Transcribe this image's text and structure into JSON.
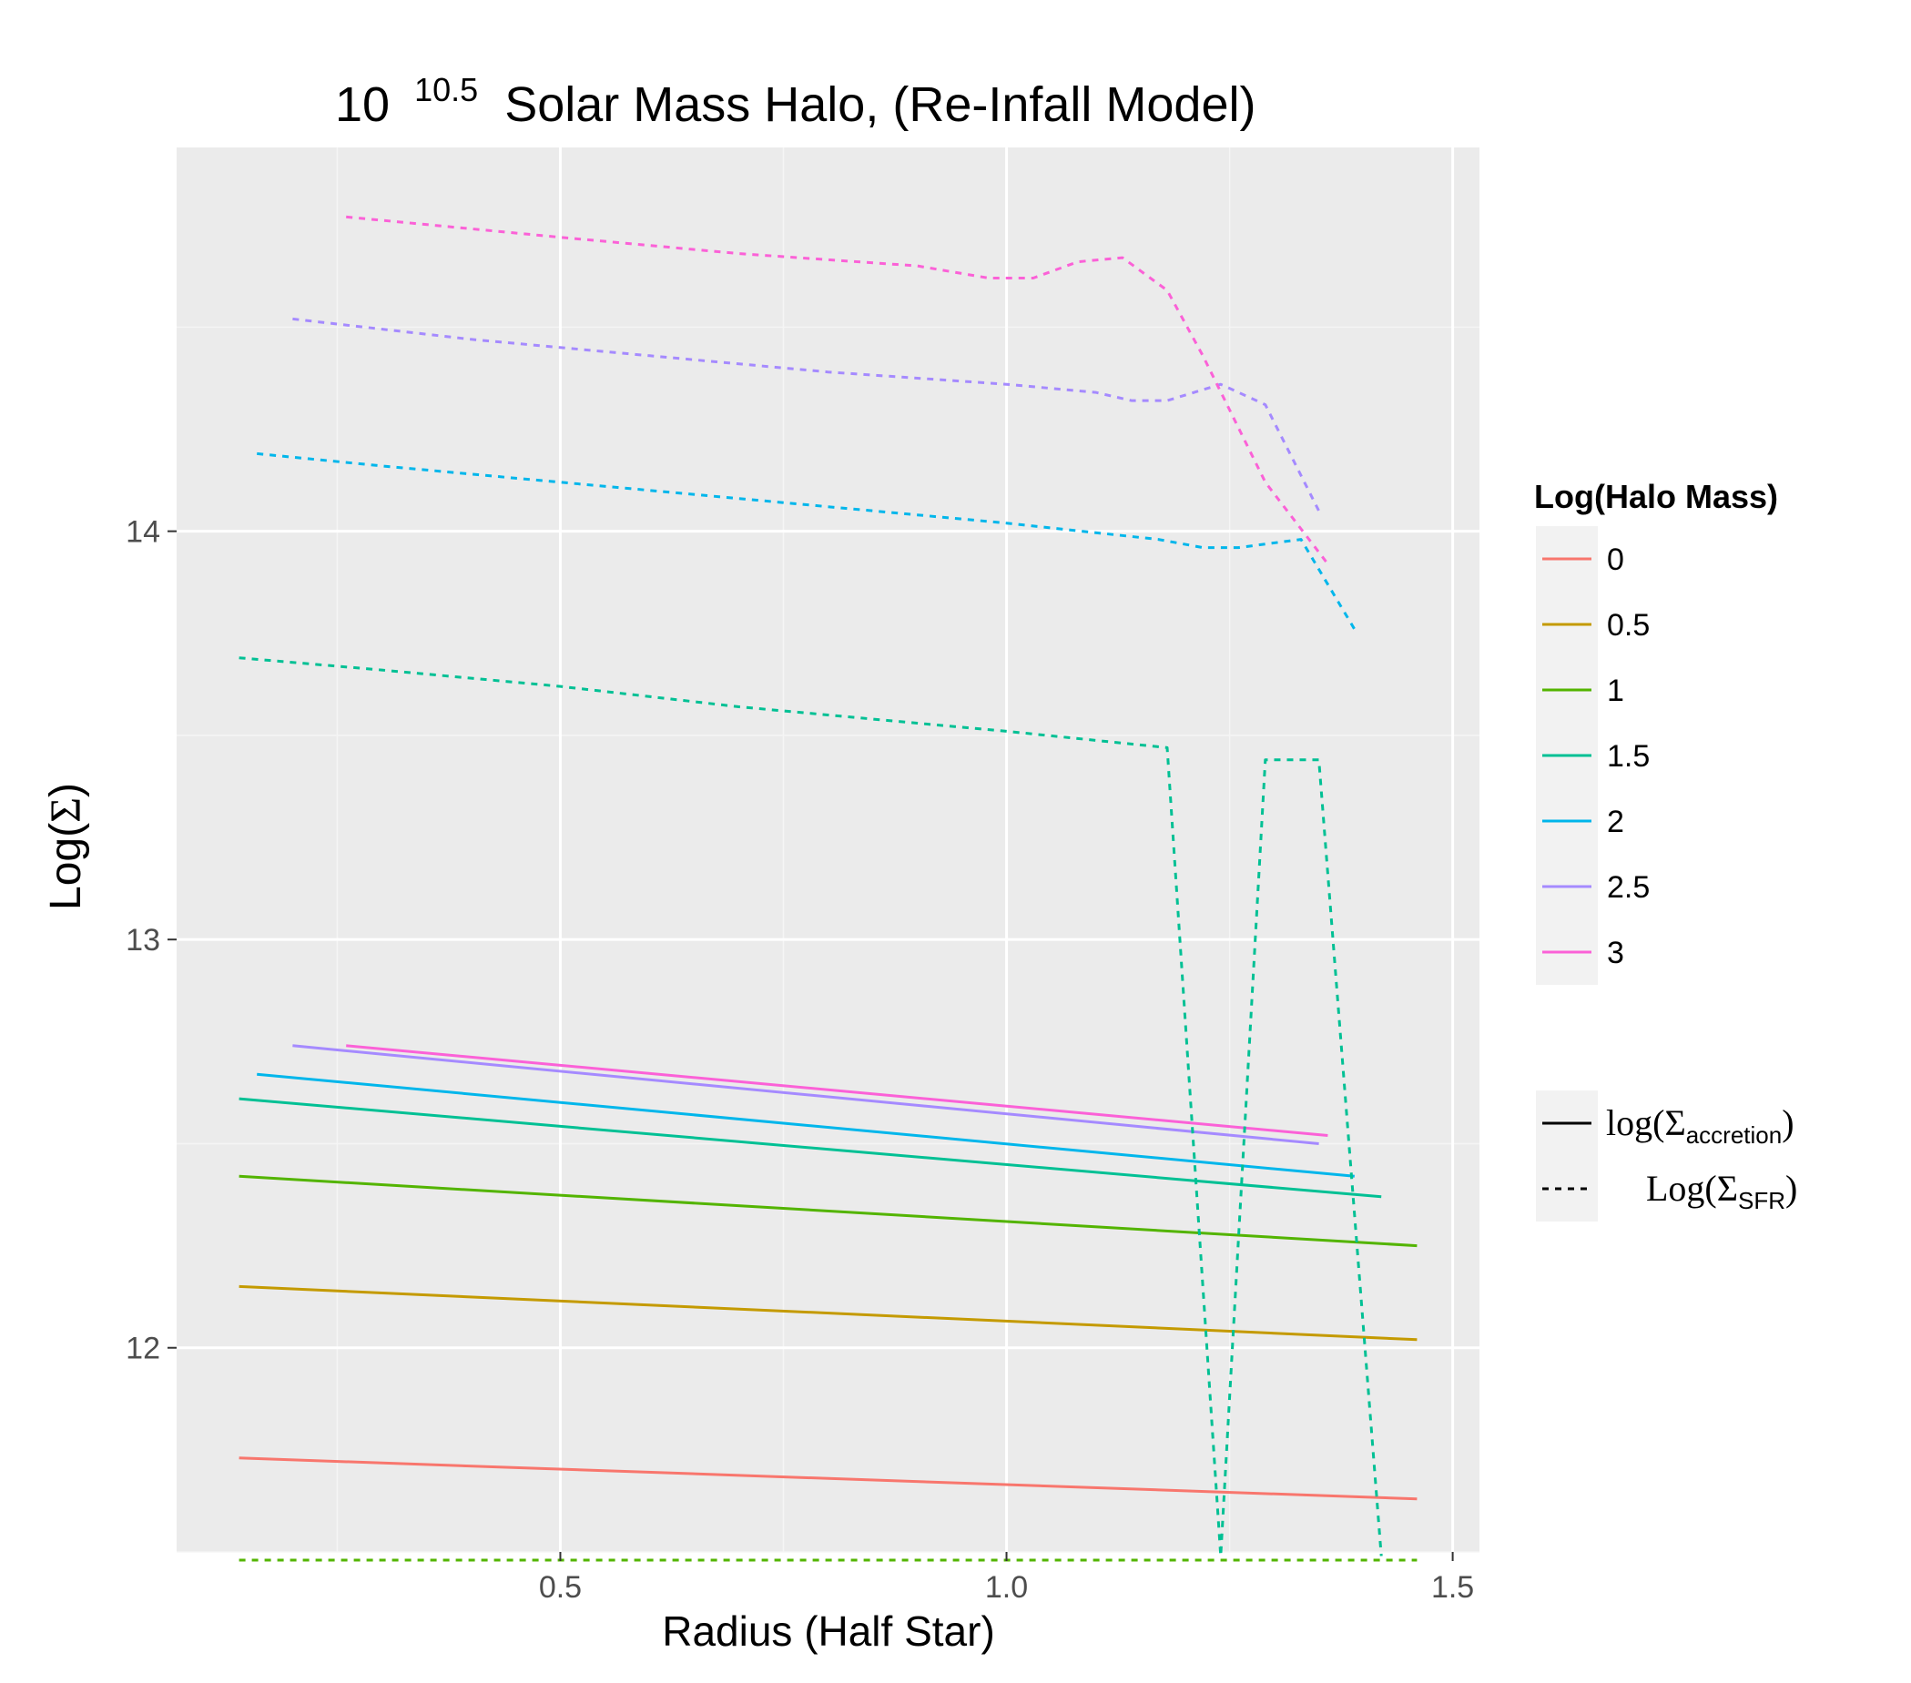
{
  "chart_data": {
    "type": "line",
    "title": {
      "base": "10",
      "exponent": "10.5",
      "text": "Solar Mass Halo, (Re-Infall Model)"
    },
    "xlabel": "Radius (Half Star)",
    "ylabel": {
      "prefix": "Log(",
      "symbol": "Σ",
      "suffix": ")"
    },
    "xlim": [
      0.07,
      1.53
    ],
    "ylim": [
      11.5,
      14.94
    ],
    "x_ticks": [
      0.5,
      1.0,
      1.5
    ],
    "x_tick_labels": [
      "0.5",
      "1.0",
      "1.5"
    ],
    "y_ticks": [
      12,
      13,
      14
    ],
    "y_tick_labels": [
      "12",
      "13",
      "14"
    ],
    "grid": true,
    "legend_position": "right",
    "colour_legend": {
      "title": "Log(Halo Mass)",
      "entries": [
        {
          "label": "0",
          "color": "#F8766D"
        },
        {
          "label": "0.5",
          "color": "#C49A00"
        },
        {
          "label": "1",
          "color": "#53B400"
        },
        {
          "label": "1.5",
          "color": "#00C094"
        },
        {
          "label": "2",
          "color": "#00B6EB"
        },
        {
          "label": "2.5",
          "color": "#A58AFF"
        },
        {
          "label": "3",
          "color": "#FB61D7"
        }
      ]
    },
    "linetype_legend": {
      "entries": [
        {
          "style": "solid",
          "prefix": "log(",
          "symbol": "Σ",
          "subscript": "accretion",
          "suffix": ")"
        },
        {
          "style": "dashed",
          "prefix": "Log(",
          "symbol": "Σ",
          "subscript": "SFR",
          "suffix": ")"
        }
      ]
    },
    "series": [
      {
        "name": "0",
        "color": "#F8766D",
        "linetype": "solid",
        "points": [
          [
            0.14,
            11.73
          ],
          [
            1.46,
            11.63
          ]
        ]
      },
      {
        "name": "0.5",
        "color": "#C49A00",
        "linetype": "solid",
        "points": [
          [
            0.14,
            12.15
          ],
          [
            1.46,
            12.02
          ]
        ]
      },
      {
        "name": "1",
        "color": "#53B400",
        "linetype": "solid",
        "points": [
          [
            0.14,
            12.42
          ],
          [
            1.46,
            12.25
          ]
        ]
      },
      {
        "name": "1.5",
        "color": "#00C094",
        "linetype": "solid",
        "points": [
          [
            0.14,
            12.61
          ],
          [
            1.42,
            12.37
          ]
        ]
      },
      {
        "name": "2",
        "color": "#00B6EB",
        "linetype": "solid",
        "points": [
          [
            0.16,
            12.67
          ],
          [
            1.39,
            12.42
          ]
        ]
      },
      {
        "name": "2.5",
        "color": "#A58AFF",
        "linetype": "solid",
        "points": [
          [
            0.2,
            12.74
          ],
          [
            1.35,
            12.5
          ]
        ]
      },
      {
        "name": "3",
        "color": "#FB61D7",
        "linetype": "solid",
        "points": [
          [
            0.26,
            12.74
          ],
          [
            1.36,
            12.52
          ]
        ]
      },
      {
        "name": "1",
        "color": "#53B400",
        "linetype": "dashed",
        "points": [
          [
            0.14,
            11.48
          ],
          [
            1.46,
            11.48
          ]
        ]
      },
      {
        "name": "1.5",
        "color": "#00C094",
        "linetype": "dashed",
        "points": [
          [
            0.14,
            13.69
          ],
          [
            0.3,
            13.66
          ],
          [
            0.5,
            13.62
          ],
          [
            0.7,
            13.57
          ],
          [
            0.9,
            13.53
          ],
          [
            1.0,
            13.51
          ],
          [
            1.18,
            13.47
          ],
          [
            1.24,
            11.49
          ],
          [
            1.29,
            13.44
          ],
          [
            1.35,
            13.44
          ],
          [
            1.42,
            11.49
          ]
        ]
      },
      {
        "name": "2",
        "color": "#00B6EB",
        "linetype": "dashed",
        "points": [
          [
            0.16,
            14.19
          ],
          [
            0.3,
            14.16
          ],
          [
            0.5,
            14.12
          ],
          [
            0.7,
            14.08
          ],
          [
            0.9,
            14.04
          ],
          [
            1.0,
            14.02
          ],
          [
            1.17,
            13.98
          ],
          [
            1.22,
            13.96
          ],
          [
            1.26,
            13.96
          ],
          [
            1.33,
            13.98
          ],
          [
            1.39,
            13.76
          ]
        ]
      },
      {
        "name": "2.5",
        "color": "#A58AFF",
        "linetype": "dashed",
        "points": [
          [
            0.2,
            14.52
          ],
          [
            0.4,
            14.47
          ],
          [
            0.6,
            14.43
          ],
          [
            0.8,
            14.39
          ],
          [
            1.0,
            14.36
          ],
          [
            1.1,
            14.34
          ],
          [
            1.14,
            14.32
          ],
          [
            1.18,
            14.32
          ],
          [
            1.24,
            14.36
          ],
          [
            1.29,
            14.31
          ],
          [
            1.35,
            14.05
          ]
        ]
      },
      {
        "name": "3",
        "color": "#FB61D7",
        "linetype": "dashed",
        "points": [
          [
            0.26,
            14.77
          ],
          [
            0.5,
            14.72
          ],
          [
            0.7,
            14.68
          ],
          [
            0.9,
            14.65
          ],
          [
            0.98,
            14.62
          ],
          [
            1.03,
            14.62
          ],
          [
            1.08,
            14.66
          ],
          [
            1.13,
            14.67
          ],
          [
            1.18,
            14.59
          ],
          [
            1.22,
            14.43
          ],
          [
            1.29,
            14.12
          ],
          [
            1.36,
            13.92
          ]
        ]
      }
    ]
  }
}
